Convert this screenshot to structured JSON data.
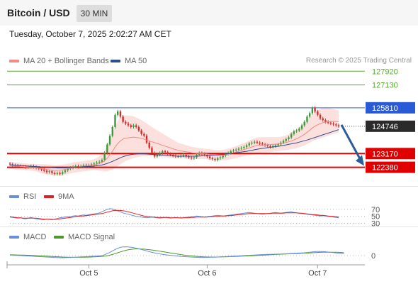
{
  "header": {
    "title": "Bitcoin / USD",
    "timeframe": "30 MIN"
  },
  "timestamp": "Tuesday, October 7, 2025 2:02:27 AM CET",
  "credit": "Research © 2025 Trading Central",
  "legend_main": [
    {
      "label": "MA 20 + Bollinger Bands",
      "color": "#f28b82"
    },
    {
      "label": "MA 50",
      "color": "#2e4f8f"
    }
  ],
  "legend_rsi": [
    {
      "label": "RSI",
      "color": "#6a8fd8"
    },
    {
      "label": "9MA",
      "color": "#e02020"
    }
  ],
  "legend_macd": [
    {
      "label": "MACD",
      "color": "#6a8fd8"
    },
    {
      "label": "MACD Signal",
      "color": "#4a9a2a"
    }
  ],
  "colors": {
    "up": "#3a9a3a",
    "down": "#d22c2c",
    "resistance": "#5aa832",
    "pivot": "#2a5bd7",
    "support": "#e00000",
    "arrow": "#2a5c9a"
  },
  "chart_data": [
    {
      "type": "candlestick",
      "name": "price",
      "ylim": [
        121380,
        128260
      ],
      "x_ticks": [
        "Oct 5",
        "Oct 6",
        "Oct 7"
      ],
      "levels": [
        {
          "value": 127920,
          "label": "127920",
          "kind": "resistance"
        },
        {
          "value": 127130,
          "label": "127130",
          "kind": "resistance"
        },
        {
          "value": 125810,
          "label": "125810",
          "kind": "pivot"
        },
        {
          "value": 123170,
          "label": "123170",
          "kind": "support"
        },
        {
          "value": 122380,
          "label": "122380",
          "kind": "support"
        }
      ],
      "last_price": {
        "value": 124746,
        "label": "124746"
      },
      "forecast_arrow": {
        "from": 124746,
        "to": 123000,
        "direction": "down"
      },
      "close": [
        122550,
        122500,
        122480,
        122450,
        122430,
        122420,
        122380,
        122400,
        122450,
        122400,
        122350,
        122300,
        122250,
        122180,
        122100,
        122150,
        122050,
        122000,
        122050,
        122000,
        122100,
        122200,
        122300,
        122350,
        122400,
        122450,
        122400,
        122450,
        122500,
        122450,
        122500,
        122550,
        122600,
        122650,
        122700,
        122800,
        123200,
        123700,
        124200,
        124700,
        125400,
        125600,
        125300,
        125000,
        124900,
        124800,
        124700,
        124800,
        124700,
        124500,
        124300,
        124200,
        123800,
        123500,
        123200,
        123000,
        123100,
        123200,
        123300,
        123250,
        123150,
        123100,
        123050,
        123000,
        123000,
        123050,
        123100,
        123000,
        122950,
        122900,
        122950,
        123100,
        123200,
        123150,
        123100,
        123000,
        122900,
        122850,
        122800,
        122900,
        122950,
        123050,
        123150,
        123200,
        123300,
        123350,
        123400,
        123450,
        123500,
        123550,
        123650,
        123750,
        123800,
        123850,
        123800,
        123750,
        123700,
        123650,
        123600,
        123550,
        123600,
        123650,
        123700,
        123800,
        123900,
        124000,
        124100,
        124300,
        124450,
        124500,
        124600,
        124800,
        125000,
        125300,
        125500,
        125800,
        125600,
        125400,
        125200,
        125100,
        125000,
        124950,
        124900,
        124850,
        124800,
        124746
      ],
      "ma20": [
        122500,
        122480,
        122460,
        122450,
        122430,
        122410,
        122400,
        122390,
        122380,
        122370,
        122350,
        122330,
        122300,
        122270,
        122250,
        122230,
        122210,
        122200,
        122200,
        122210,
        122230,
        122260,
        122290,
        122320,
        122350,
        122380,
        122400,
        122420,
        122440,
        122460,
        122480,
        122500,
        122530,
        122560,
        122600,
        122650,
        122750,
        122900,
        123100,
        123300,
        123550,
        123750,
        123900,
        124000,
        124050,
        124080,
        124100,
        124120,
        124100,
        124080,
        124050,
        124000,
        123950,
        123900,
        123850,
        123800,
        123750,
        123700,
        123650,
        123600,
        123550,
        123500,
        123450,
        123400,
        123350,
        123320,
        123300,
        123270,
        123250,
        123220,
        123200,
        123180,
        123170,
        123160,
        123150,
        123140,
        123120,
        123100,
        123080,
        123070,
        123070,
        123080,
        123100,
        123130,
        123170,
        123210,
        123250,
        123300,
        123350,
        123400,
        123450,
        123500,
        123550,
        123600,
        123630,
        123650,
        123660,
        123670,
        123680,
        123690,
        123700,
        123710,
        123720,
        123740,
        123770,
        123800,
        123850,
        123900,
        123960,
        124020,
        124100,
        124180,
        124280,
        124400,
        124520,
        124650,
        124750,
        124830,
        124900,
        124950,
        124980,
        125000,
        125010,
        125020,
        125020,
        125010
      ],
      "bb_width": [
        200,
        200,
        200,
        200,
        200,
        200,
        200,
        200,
        200,
        200,
        220,
        240,
        260,
        280,
        300,
        300,
        300,
        300,
        300,
        300,
        300,
        300,
        300,
        300,
        300,
        300,
        300,
        300,
        300,
        300,
        300,
        300,
        320,
        360,
        420,
        480,
        600,
        750,
        900,
        1050,
        1200,
        1300,
        1350,
        1350,
        1320,
        1280,
        1240,
        1200,
        1150,
        1100,
        1050,
        1000,
        950,
        900,
        850,
        800,
        760,
        720,
        680,
        640,
        600,
        560,
        520,
        480,
        440,
        420,
        400,
        380,
        360,
        350,
        340,
        330,
        320,
        310,
        300,
        300,
        300,
        300,
        300,
        300,
        300,
        300,
        310,
        320,
        330,
        340,
        350,
        360,
        370,
        380,
        400,
        420,
        440,
        460,
        470,
        470,
        460,
        450,
        440,
        430,
        420,
        410,
        400,
        400,
        410,
        420,
        450,
        480,
        510,
        540,
        570,
        600,
        640,
        680,
        720,
        760,
        800,
        840,
        860,
        860,
        840,
        800,
        760,
        720,
        680,
        640,
        600,
        560,
        520,
        500
      ],
      "ma50": [
        122520,
        122510,
        122500,
        122490,
        122480,
        122470,
        122460,
        122450,
        122440,
        122430,
        122420,
        122410,
        122400,
        122390,
        122380,
        122370,
        122360,
        122350,
        122340,
        122340,
        122340,
        122340,
        122350,
        122360,
        122370,
        122380,
        122390,
        122400,
        122410,
        122420,
        122430,
        122440,
        122450,
        122470,
        122490,
        122510,
        122550,
        122600,
        122660,
        122720,
        122790,
        122860,
        122930,
        122990,
        123040,
        123080,
        123110,
        123130,
        123140,
        123150,
        123150,
        123150,
        123140,
        123130,
        123120,
        123110,
        123100,
        123090,
        123080,
        123070,
        123060,
        123050,
        123040,
        123030,
        123020,
        123020,
        123020,
        123020,
        123020,
        123020,
        123020,
        123020,
        123030,
        123040,
        123050,
        123060,
        123070,
        123080,
        123090,
        123100,
        123110,
        123120,
        123140,
        123160,
        123180,
        123200,
        123220,
        123240,
        123260,
        123280,
        123300,
        123330,
        123360,
        123390,
        123420,
        123450,
        123470,
        123490,
        123510,
        123530,
        123550,
        123570,
        123590,
        123610,
        123640,
        123670,
        123700,
        123730,
        123760,
        123790,
        123830,
        123870,
        123910,
        123950,
        124000,
        124050,
        124100,
        124150,
        124200,
        124250,
        124300,
        124350,
        124400,
        124450,
        124500,
        124550
      ]
    },
    {
      "type": "line",
      "name": "RSI",
      "ylim": [
        25,
        80
      ],
      "y_ticks": [
        70,
        50,
        30
      ],
      "series": [
        {
          "name": "RSI",
          "values": [
            48,
            47,
            46,
            45,
            46,
            44,
            43,
            45,
            47,
            45,
            43,
            42,
            41,
            40,
            42,
            41,
            40,
            42,
            44,
            46,
            47,
            48,
            50,
            49,
            51,
            52,
            51,
            53,
            54,
            53,
            55,
            56,
            57,
            58,
            60,
            63,
            67,
            70,
            72,
            71,
            69,
            66,
            63,
            60,
            58,
            56,
            54,
            52,
            50,
            49,
            48,
            47,
            46,
            47,
            48,
            47,
            46,
            45,
            46,
            47,
            46,
            45,
            46,
            47,
            46,
            45,
            46,
            47,
            48,
            49,
            50,
            51,
            50,
            49,
            48,
            49,
            50,
            51,
            52,
            53,
            52,
            51,
            52,
            53,
            54,
            55,
            56,
            57,
            58,
            59,
            60,
            61,
            60,
            59,
            58,
            57,
            56,
            57,
            58,
            59,
            60,
            61,
            60,
            59,
            60,
            61,
            62,
            63,
            61,
            60,
            59,
            58,
            57,
            56,
            55,
            54,
            53,
            52,
            51,
            52,
            51,
            50,
            49,
            48,
            47,
            46
          ]
        },
        {
          "name": "9MA",
          "values": [
            49,
            48,
            47,
            46,
            46,
            45,
            45,
            45,
            45,
            45,
            45,
            44,
            43,
            42,
            42,
            42,
            41,
            41,
            42,
            43,
            44,
            45,
            46,
            47,
            48,
            49,
            50,
            51,
            51,
            52,
            53,
            54,
            55,
            56,
            57,
            58,
            60,
            62,
            64,
            66,
            67,
            67,
            67,
            66,
            65,
            63,
            61,
            59,
            57,
            55,
            53,
            51,
            50,
            49,
            48,
            48,
            47,
            47,
            47,
            47,
            47,
            46,
            46,
            46,
            46,
            46,
            46,
            46,
            46,
            47,
            47,
            48,
            48,
            48,
            48,
            48,
            49,
            49,
            50,
            50,
            51,
            51,
            51,
            52,
            52,
            53,
            54,
            55,
            55,
            56,
            57,
            58,
            58,
            58,
            58,
            58,
            58,
            58,
            58,
            58,
            59,
            59,
            59,
            59,
            59,
            60,
            60,
            60,
            60,
            60,
            59,
            59,
            58,
            57,
            56,
            55,
            55,
            54,
            53,
            53,
            52,
            51,
            50,
            50,
            49,
            48
          ]
        }
      ]
    },
    {
      "type": "line",
      "name": "MACD",
      "ylim": [
        -600,
        900
      ],
      "y_ticks": [
        0
      ],
      "series": [
        {
          "name": "MACD",
          "values": [
            40,
            30,
            20,
            10,
            0,
            -10,
            -20,
            -30,
            -40,
            -50,
            -60,
            -70,
            -80,
            -90,
            -100,
            -110,
            -120,
            -130,
            -140,
            -150,
            -150,
            -145,
            -140,
            -130,
            -120,
            -110,
            -100,
            -90,
            -80,
            -70,
            -60,
            -50,
            -40,
            -30,
            -10,
            10,
            60,
            140,
            230,
            330,
            430,
            520,
            580,
            610,
            620,
            610,
            590,
            560,
            520,
            480,
            430,
            380,
            330,
            280,
            230,
            190,
            150,
            120,
            90,
            60,
            40,
            20,
            0,
            -20,
            -40,
            -60,
            -70,
            -80,
            -90,
            -100,
            -110,
            -120,
            -125,
            -130,
            -130,
            -125,
            -120,
            -115,
            -110,
            -100,
            -90,
            -80,
            -70,
            -60,
            -50,
            -40,
            -30,
            -20,
            -10,
            0,
            10,
            20,
            30,
            40,
            50,
            60,
            70,
            80,
            85,
            90,
            95,
            100,
            105,
            110,
            120,
            130,
            140,
            150,
            160,
            170,
            180,
            190,
            200,
            220,
            240,
            260,
            280,
            290,
            290,
            280,
            270,
            250,
            230,
            210,
            190,
            170,
            150,
            130
          ]
        },
        {
          "name": "MACD Signal",
          "values": [
            60,
            55,
            50,
            45,
            40,
            35,
            30,
            25,
            20,
            10,
            0,
            -10,
            -20,
            -30,
            -40,
            -50,
            -60,
            -70,
            -80,
            -90,
            -100,
            -105,
            -110,
            -115,
            -118,
            -120,
            -120,
            -118,
            -115,
            -110,
            -105,
            -100,
            -90,
            -80,
            -70,
            -60,
            -40,
            -10,
            30,
            80,
            140,
            200,
            260,
            320,
            370,
            410,
            440,
            460,
            470,
            470,
            465,
            455,
            440,
            420,
            395,
            370,
            340,
            310,
            280,
            250,
            220,
            190,
            160,
            130,
            100,
            70,
            45,
            20,
            0,
            -20,
            -40,
            -55,
            -70,
            -80,
            -90,
            -95,
            -100,
            -100,
            -100,
            -98,
            -95,
            -90,
            -85,
            -80,
            -72,
            -64,
            -56,
            -48,
            -40,
            -32,
            -24,
            -16,
            -8,
            0,
            10,
            20,
            30,
            40,
            50,
            60,
            70,
            80,
            88,
            96,
            104,
            112,
            120,
            128,
            136,
            144,
            152,
            160,
            170,
            180,
            190,
            200,
            210,
            220,
            228,
            234,
            238,
            240,
            240,
            238,
            234,
            228,
            220,
            210
          ]
        }
      ]
    }
  ]
}
